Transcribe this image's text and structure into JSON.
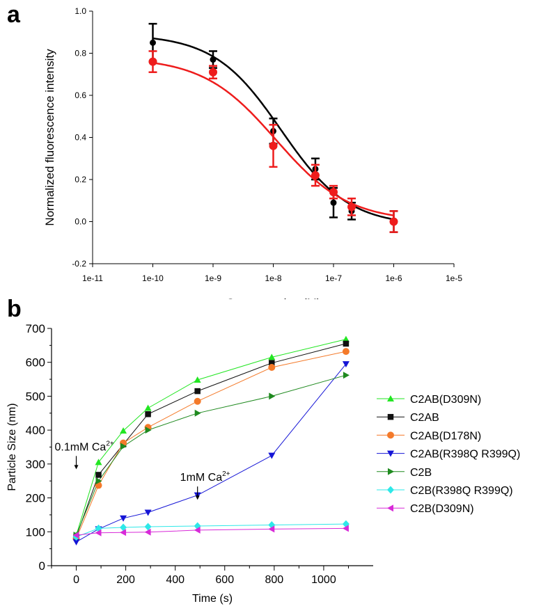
{
  "panels": {
    "a": "a",
    "b": "b"
  },
  "chart_data": [
    {
      "type": "scatter",
      "panel": "a",
      "xscale": "log",
      "xlabel": "Concentration (M)",
      "ylabel": "Normalized fluorescence intensity",
      "xlim": [
        1e-11,
        1e-05
      ],
      "ylim": [
        -0.2,
        1.0
      ],
      "xticks": [
        1e-11,
        1e-10,
        1e-09,
        1e-08,
        1e-07,
        1e-06,
        1e-05
      ],
      "xtick_labels": [
        "1e-11",
        "1e-10",
        "1e-9",
        "1e-8",
        "1e-7",
        "1e-6",
        "1e-5"
      ],
      "yticks": [
        -0.2,
        0.0,
        0.2,
        0.4,
        0.6,
        0.8,
        1.0
      ],
      "ytick_labels": [
        "-0.2",
        "0.0",
        "0.2",
        "0.4",
        "0.6",
        "0.8",
        "1.0"
      ],
      "series": [
        {
          "name": "black",
          "color": "#000000",
          "x": [
            1e-10,
            1e-09,
            1e-08,
            5e-08,
            1e-07,
            2e-07,
            1e-06
          ],
          "y": [
            0.85,
            0.77,
            0.43,
            0.25,
            0.09,
            0.05,
            0.0
          ],
          "err": [
            0.09,
            0.04,
            0.06,
            0.05,
            0.07,
            0.04,
            0.05
          ],
          "fit": {
            "top": 0.89,
            "bottom": -0.02,
            "ec50": 1.35e-08,
            "hill": 0.78
          }
        },
        {
          "name": "red",
          "color": "#ee1c1c",
          "x": [
            1e-10,
            1e-09,
            1e-08,
            5e-08,
            1e-07,
            2e-07,
            1e-06
          ],
          "y": [
            0.76,
            0.71,
            0.36,
            0.22,
            0.14,
            0.07,
            0.0
          ],
          "err": [
            0.05,
            0.03,
            0.1,
            0.05,
            0.03,
            0.04,
            0.05
          ],
          "fit": {
            "top": 0.78,
            "bottom": 0.0,
            "ec50": 1.1e-08,
            "hill": 0.72
          }
        }
      ]
    },
    {
      "type": "line",
      "panel": "b",
      "xlabel": "Time (s)",
      "ylabel": "Particle Size (nm)",
      "xlim": [
        -100,
        1200
      ],
      "ylim": [
        0,
        700
      ],
      "xticks": [
        0,
        200,
        400,
        600,
        800,
        1000
      ],
      "yticks": [
        0,
        100,
        200,
        300,
        400,
        500,
        600,
        700
      ],
      "x": [
        0,
        90,
        190,
        290,
        490,
        790,
        1090
      ],
      "annotations": [
        {
          "text": "0.1mM Ca",
          "sup": "2+",
          "x": 0,
          "y": 340
        },
        {
          "text": "1mM Ca",
          "sup": "2+",
          "x": 490,
          "y": 250
        }
      ],
      "series": [
        {
          "name": "C2AB(D309N)",
          "color": "#22e622",
          "marker": "triangle-up",
          "values": [
            90,
            305,
            398,
            465,
            548,
            615,
            668
          ]
        },
        {
          "name": "C2AB",
          "color": "#111111",
          "marker": "square",
          "values": [
            85,
            268,
            358,
            447,
            515,
            598,
            655
          ]
        },
        {
          "name": "C2AB(D178N)",
          "color": "#f47a2a",
          "marker": "circle",
          "values": [
            80,
            237,
            362,
            408,
            485,
            585,
            632
          ]
        },
        {
          "name": "C2AB(R398Q R399Q)",
          "color": "#1515d6",
          "marker": "triangle-down",
          "values": [
            70,
            108,
            140,
            157,
            208,
            325,
            595
          ]
        },
        {
          "name": "C2B",
          "color": "#1f8a1f",
          "marker": "triangle-right",
          "values": [
            90,
            250,
            352,
            400,
            450,
            500,
            562
          ]
        },
        {
          "name": "C2B(R398Q R399Q)",
          "color": "#2ee8e8",
          "marker": "diamond",
          "values": [
            85,
            110,
            113,
            115,
            117,
            120,
            123
          ]
        },
        {
          "name": "C2B(D309N)",
          "color": "#d82ad8",
          "marker": "triangle-left",
          "values": [
            90,
            97,
            98,
            99,
            105,
            108,
            110
          ]
        }
      ]
    }
  ]
}
